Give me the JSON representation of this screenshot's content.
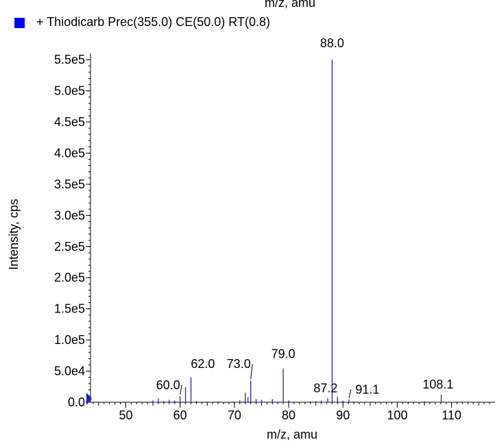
{
  "header_fragment": "m/z, amu",
  "legend": {
    "label": "+ Thiodicarb Prec(355.0) CE(50.0) RT(0.8)",
    "marker_color": "#0000ff"
  },
  "chart_data": {
    "type": "bar",
    "xlabel": "m/z, amu",
    "ylabel": "Intensity, cps",
    "xlim": [
      43.5,
      118
    ],
    "ylim": [
      0,
      560000
    ],
    "x_ticks": [
      50,
      60,
      70,
      80,
      90,
      100,
      110
    ],
    "y_ticks": [
      {
        "value": 0,
        "label": "0.0"
      },
      {
        "value": 50000,
        "label": "5.0e4"
      },
      {
        "value": 100000,
        "label": "1.0e5"
      },
      {
        "value": 150000,
        "label": "1.5e5"
      },
      {
        "value": 200000,
        "label": "2.0e5"
      },
      {
        "value": 250000,
        "label": "2.5e5"
      },
      {
        "value": 300000,
        "label": "3.0e5"
      },
      {
        "value": 350000,
        "label": "3.5e5"
      },
      {
        "value": 400000,
        "label": "4.0e5"
      },
      {
        "value": 450000,
        "label": "4.5e5"
      },
      {
        "value": 500000,
        "label": "5.0e5"
      },
      {
        "value": 550000,
        "label": "5.5e5"
      }
    ],
    "series_color": "#3030b0",
    "peaks": [
      {
        "x": 55.0,
        "y": 3000
      },
      {
        "x": 56.0,
        "y": 6000
      },
      {
        "x": 57.0,
        "y": 2000
      },
      {
        "x": 58.0,
        "y": 4000
      },
      {
        "x": 59.0,
        "y": 3000
      },
      {
        "x": 60.0,
        "y": 10000
      },
      {
        "x": 61.0,
        "y": 24000
      },
      {
        "x": 62.0,
        "y": 40000
      },
      {
        "x": 63.0,
        "y": 2000
      },
      {
        "x": 67.0,
        "y": 1500
      },
      {
        "x": 71.0,
        "y": 3000
      },
      {
        "x": 72.0,
        "y": 15000
      },
      {
        "x": 72.5,
        "y": 8000
      },
      {
        "x": 73.0,
        "y": 35000
      },
      {
        "x": 74.0,
        "y": 5000
      },
      {
        "x": 75.0,
        "y": 4000
      },
      {
        "x": 77.0,
        "y": 5000
      },
      {
        "x": 79.0,
        "y": 54000
      },
      {
        "x": 80.0,
        "y": 3000
      },
      {
        "x": 84.0,
        "y": 1500
      },
      {
        "x": 85.0,
        "y": 2000
      },
      {
        "x": 86.0,
        "y": 3000
      },
      {
        "x": 87.2,
        "y": 7000
      },
      {
        "x": 88.0,
        "y": 550000
      },
      {
        "x": 89.0,
        "y": 9000
      },
      {
        "x": 90.0,
        "y": 2500
      },
      {
        "x": 91.1,
        "y": 4500
      },
      {
        "x": 92.0,
        "y": 1500
      },
      {
        "x": 105.0,
        "y": 1500
      },
      {
        "x": 108.1,
        "y": 12000
      }
    ],
    "peak_labels": [
      {
        "label": "88.0",
        "x": 88.0,
        "y": 550000,
        "lx": 88.0,
        "ly": 570000,
        "leader": false
      },
      {
        "label": "79.0",
        "x": 79.0,
        "y": 54000,
        "lx": 79.0,
        "ly": 71000,
        "leader": false
      },
      {
        "label": "73.0",
        "x": 73.0,
        "y": 35000,
        "lx": 70.8,
        "ly": 55000,
        "leader": true
      },
      {
        "label": "62.0",
        "x": 62.0,
        "y": 40000,
        "lx": 64.2,
        "ly": 55000,
        "leader": false
      },
      {
        "label": "60.0",
        "x": 60.0,
        "y": 10000,
        "lx": 57.8,
        "ly": 21000,
        "leader": true
      },
      {
        "label": "87.2",
        "x": 87.2,
        "y": 7000,
        "lx": 86.8,
        "ly": 16000,
        "leader": false
      },
      {
        "label": "91.1",
        "x": 91.1,
        "y": 4500,
        "lx": 94.5,
        "ly": 14000,
        "leader": true
      },
      {
        "label": "108.1",
        "x": 108.1,
        "y": 12000,
        "lx": 107.5,
        "ly": 22000,
        "leader": false
      }
    ]
  }
}
